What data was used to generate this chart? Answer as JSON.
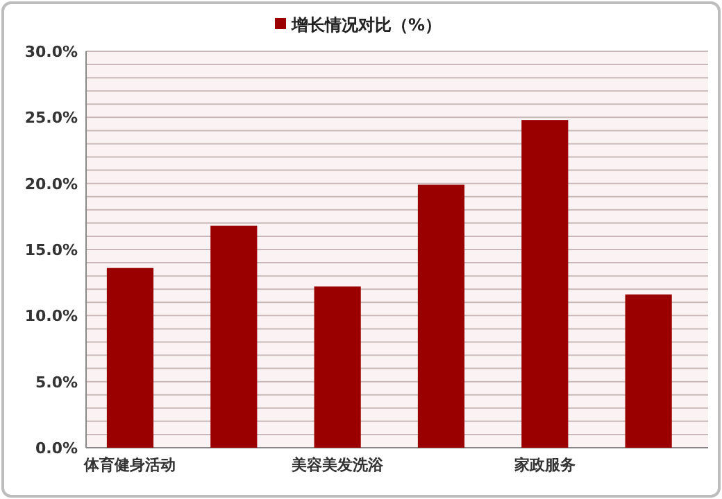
{
  "chart_data": {
    "type": "bar",
    "categories": [
      "体育健身活动",
      null,
      "美容美发洗浴",
      null,
      "家政服务",
      null
    ],
    "series": [
      {
        "name": "增长情况对比（%）",
        "color": "#9b0000",
        "values": [
          13.6,
          16.8,
          12.2,
          19.9,
          24.8,
          11.6
        ]
      }
    ],
    "ylim": [
      0,
      30
    ],
    "yticks": [
      {
        "value": 0,
        "label": "0.0%"
      },
      {
        "value": 1,
        "label": null
      },
      {
        "value": 2,
        "label": null
      },
      {
        "value": 3,
        "label": null
      },
      {
        "value": 4,
        "label": null
      },
      {
        "value": 5,
        "label": "5.0%"
      },
      {
        "value": 6,
        "label": null
      },
      {
        "value": 7,
        "label": null
      },
      {
        "value": 8,
        "label": null
      },
      {
        "value": 9,
        "label": null
      },
      {
        "value": 10,
        "label": "10.0%"
      },
      {
        "value": 11,
        "label": null
      },
      {
        "value": 12,
        "label": null
      },
      {
        "value": 13,
        "label": null
      },
      {
        "value": 14,
        "label": null
      },
      {
        "value": 15,
        "label": "15.0%"
      },
      {
        "value": 16,
        "label": null
      },
      {
        "value": 17,
        "label": null
      },
      {
        "value": 18,
        "label": null
      },
      {
        "value": 19,
        "label": null
      },
      {
        "value": 20,
        "label": "20.0%"
      },
      {
        "value": 21,
        "label": null
      },
      {
        "value": 22,
        "label": null
      },
      {
        "value": 23,
        "label": null
      },
      {
        "value": 24,
        "label": null
      },
      {
        "value": 25,
        "label": "25.0%"
      },
      {
        "value": 26,
        "label": null
      },
      {
        "value": 27,
        "label": null
      },
      {
        "value": 28,
        "label": null
      },
      {
        "value": 29,
        "label": null
      },
      {
        "value": 30,
        "label": "30.0%"
      }
    ],
    "grid": "y",
    "legend": "top"
  }
}
